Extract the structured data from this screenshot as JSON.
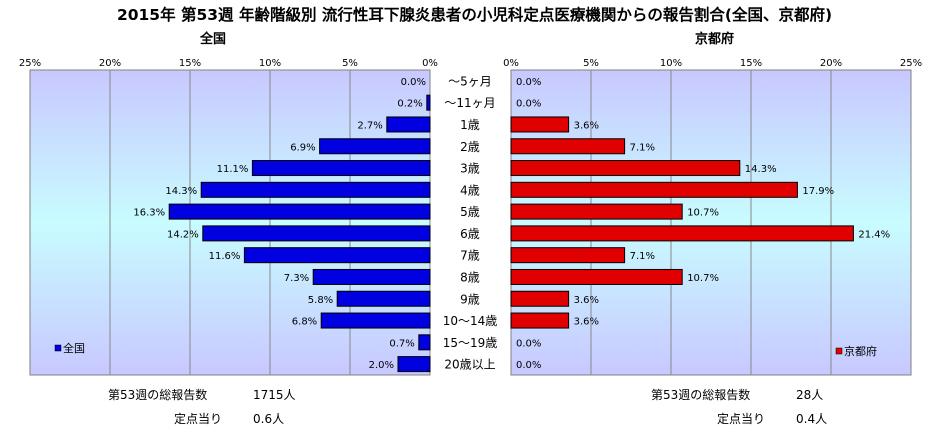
{
  "title": "2015年 第53週 年齢階級別 流行性耳下腺炎患者の小児科定点医療機関からの報告割合(全国、京都府)",
  "colors": {
    "national": "#0000e0",
    "kyoto": "#e00000"
  },
  "chart_data": {
    "type": "bar",
    "orientation": "horizontal-butterfly",
    "categories": [
      "～5ヶ月",
      "～11ヶ月",
      "1歳",
      "2歳",
      "3歳",
      "4歳",
      "5歳",
      "6歳",
      "7歳",
      "8歳",
      "9歳",
      "10～14歳",
      "15～19歳",
      "20歳以上"
    ],
    "xlim": [
      0,
      25
    ],
    "xticks": [
      "0%",
      "5%",
      "10%",
      "15%",
      "20%",
      "25%"
    ],
    "grid": true,
    "series": [
      {
        "name": "全国",
        "subtitle": "全国",
        "values": [
          0.0,
          0.2,
          2.7,
          6.9,
          11.1,
          14.3,
          16.3,
          14.2,
          11.6,
          7.3,
          5.8,
          6.8,
          0.7,
          2.0
        ],
        "labels": [
          "0.0%",
          "0.2%",
          "2.7%",
          "6.9%",
          "11.1%",
          "14.3%",
          "16.3%",
          "14.2%",
          "11.6%",
          "7.3%",
          "5.8%",
          "6.8%",
          "0.7%",
          "2.0%"
        ],
        "legend": "全国",
        "footer": {
          "total_label": "第53週の総報告数",
          "total_value": "1715人",
          "per_site_label": "定点当り",
          "per_site_value": "0.6人"
        }
      },
      {
        "name": "京都府",
        "subtitle": "京都府",
        "values": [
          0.0,
          0.0,
          3.6,
          7.1,
          14.3,
          17.9,
          10.7,
          21.4,
          7.1,
          10.7,
          3.6,
          3.6,
          0.0,
          0.0
        ],
        "labels": [
          "0.0%",
          "0.0%",
          "3.6%",
          "7.1%",
          "14.3%",
          "17.9%",
          "10.7%",
          "21.4%",
          "7.1%",
          "10.7%",
          "3.6%",
          "3.6%",
          "0.0%",
          "0.0%"
        ],
        "legend": "京都府",
        "footer": {
          "total_label": "第53週の総報告数",
          "total_value": "28人",
          "per_site_label": "定点当り",
          "per_site_value": "0.4人"
        }
      }
    ]
  }
}
